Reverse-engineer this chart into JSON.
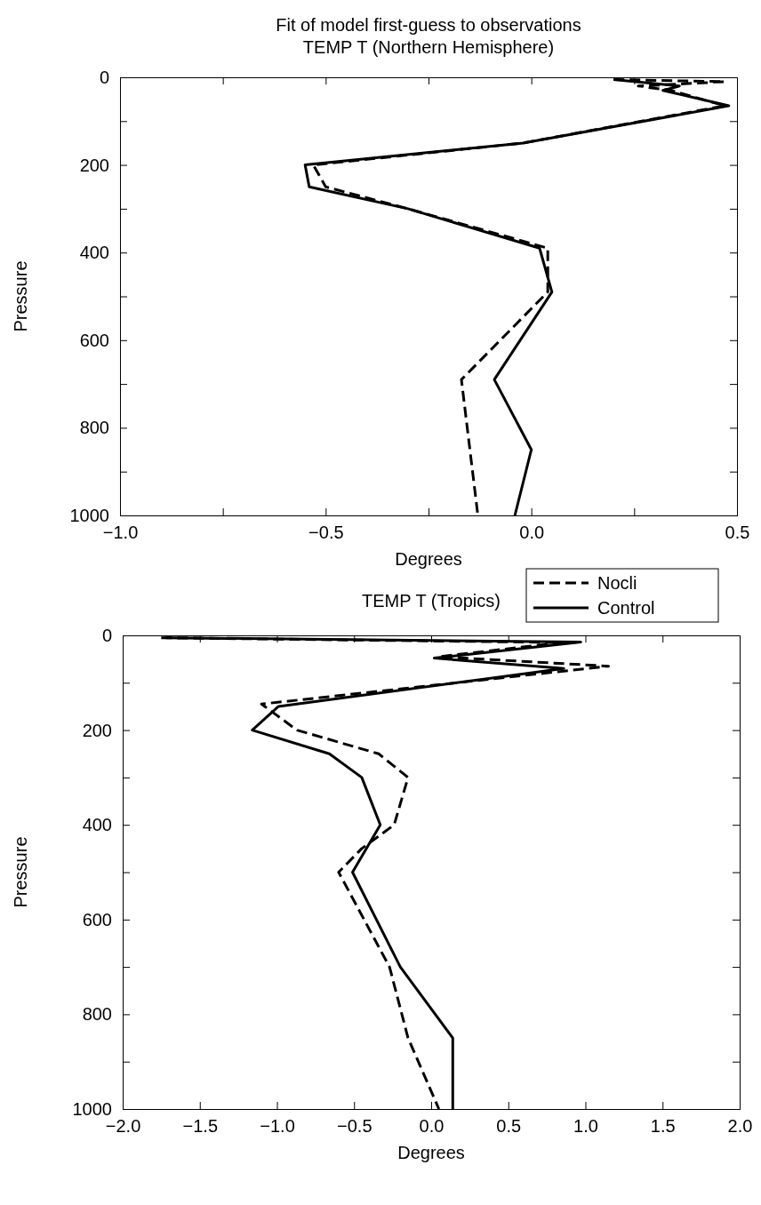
{
  "chart_data": [
    {
      "type": "line",
      "title": "Fit of model first-guess to observations",
      "subtitle": "TEMP T (Northern Hemisphere)",
      "xlabel": "Degrees",
      "ylabel": "Pressure",
      "legend": "bottom right",
      "grid": false,
      "xlim": [
        -1,
        0.5
      ],
      "xticks": [
        {
          "value": -1,
          "label": "−1.0"
        },
        {
          "value": -0.75,
          "label": null
        },
        {
          "value": -0.5,
          "label": "−0.5"
        },
        {
          "value": -0.25,
          "label": null
        },
        {
          "value": 0,
          "label": "0.0"
        },
        {
          "value": 0.25,
          "label": null
        },
        {
          "value": 0.5,
          "label": "0.5"
        }
      ],
      "ylim": [
        1000,
        0
      ],
      "yticks": [
        0,
        {
          "value": 100,
          "label": null
        },
        200,
        {
          "value": 300,
          "label": null
        },
        400,
        {
          "value": 500,
          "label": null
        },
        600,
        {
          "value": 700,
          "label": null
        },
        800,
        {
          "value": 900,
          "label": null
        },
        1000
      ],
      "series": [
        {
          "name": "Nocli",
          "color": "#000000",
          "line_style": "dashed",
          "x": [
            0.2,
            0.47,
            0.26,
            0.34,
            0.47,
            -0.02,
            -0.53,
            -0.5,
            -0.3,
            0.04,
            0.04,
            -0.17,
            -0.13
          ],
          "values": [
            5,
            10,
            20,
            30,
            65,
            150,
            200,
            250,
            300,
            390,
            490,
            690,
            1000
          ]
        },
        {
          "name": "Control",
          "color": "#000000",
          "line_style": "solid",
          "x": [
            0.2,
            0.36,
            0.32,
            0.48,
            -0.02,
            -0.55,
            -0.54,
            -0.3,
            0.02,
            0.05,
            -0.09,
            0.0,
            -0.04
          ],
          "values": [
            5,
            20,
            30,
            65,
            150,
            200,
            250,
            300,
            390,
            490,
            690,
            850,
            1000
          ]
        }
      ]
    },
    {
      "type": "line",
      "title": "TEMP T (Tropics)",
      "xlabel": "Degrees",
      "ylabel": "Pressure",
      "grid": false,
      "xlim": [
        -2,
        2
      ],
      "xticks": [
        {
          "value": -2,
          "label": "−2.0"
        },
        {
          "value": -1.5,
          "label": "−1.5"
        },
        {
          "value": -1,
          "label": "−1.0"
        },
        {
          "value": -0.5,
          "label": "−0.5"
        },
        {
          "value": 0,
          "label": "0.0"
        },
        {
          "value": 0.5,
          "label": "0.5"
        },
        {
          "value": 1,
          "label": "1.0"
        },
        {
          "value": 1.5,
          "label": "1.5"
        },
        {
          "value": 2,
          "label": "2.0"
        }
      ],
      "ylim": [
        1000,
        0
      ],
      "yticks": [
        0,
        {
          "value": 100,
          "label": null
        },
        200,
        {
          "value": 300,
          "label": null
        },
        400,
        {
          "value": 500,
          "label": null
        },
        600,
        {
          "value": 700,
          "label": null
        },
        800,
        {
          "value": 900,
          "label": null
        },
        1000
      ],
      "series": [
        {
          "color": "#000000",
          "line_style": "dashed",
          "x": [
            -1.75,
            0.85,
            0.05,
            1.15,
            -1.1,
            -0.87,
            -0.34,
            -0.15,
            -0.24,
            -0.45,
            -0.6,
            -0.27,
            -0.15,
            0.05
          ],
          "values": [
            5,
            15,
            45,
            65,
            145,
            200,
            250,
            300,
            400,
            450,
            500,
            700,
            850,
            1000
          ]
        },
        {
          "color": "#000000",
          "line_style": "solid",
          "x": [
            -1.72,
            0.97,
            0.02,
            0.86,
            -0.99,
            -1.16,
            -0.66,
            -0.45,
            -0.33,
            -0.51,
            -0.2,
            0.14,
            0.14
          ],
          "values": [
            5,
            14,
            48,
            70,
            150,
            200,
            250,
            300,
            400,
            500,
            700,
            850,
            1000
          ]
        }
      ]
    }
  ]
}
